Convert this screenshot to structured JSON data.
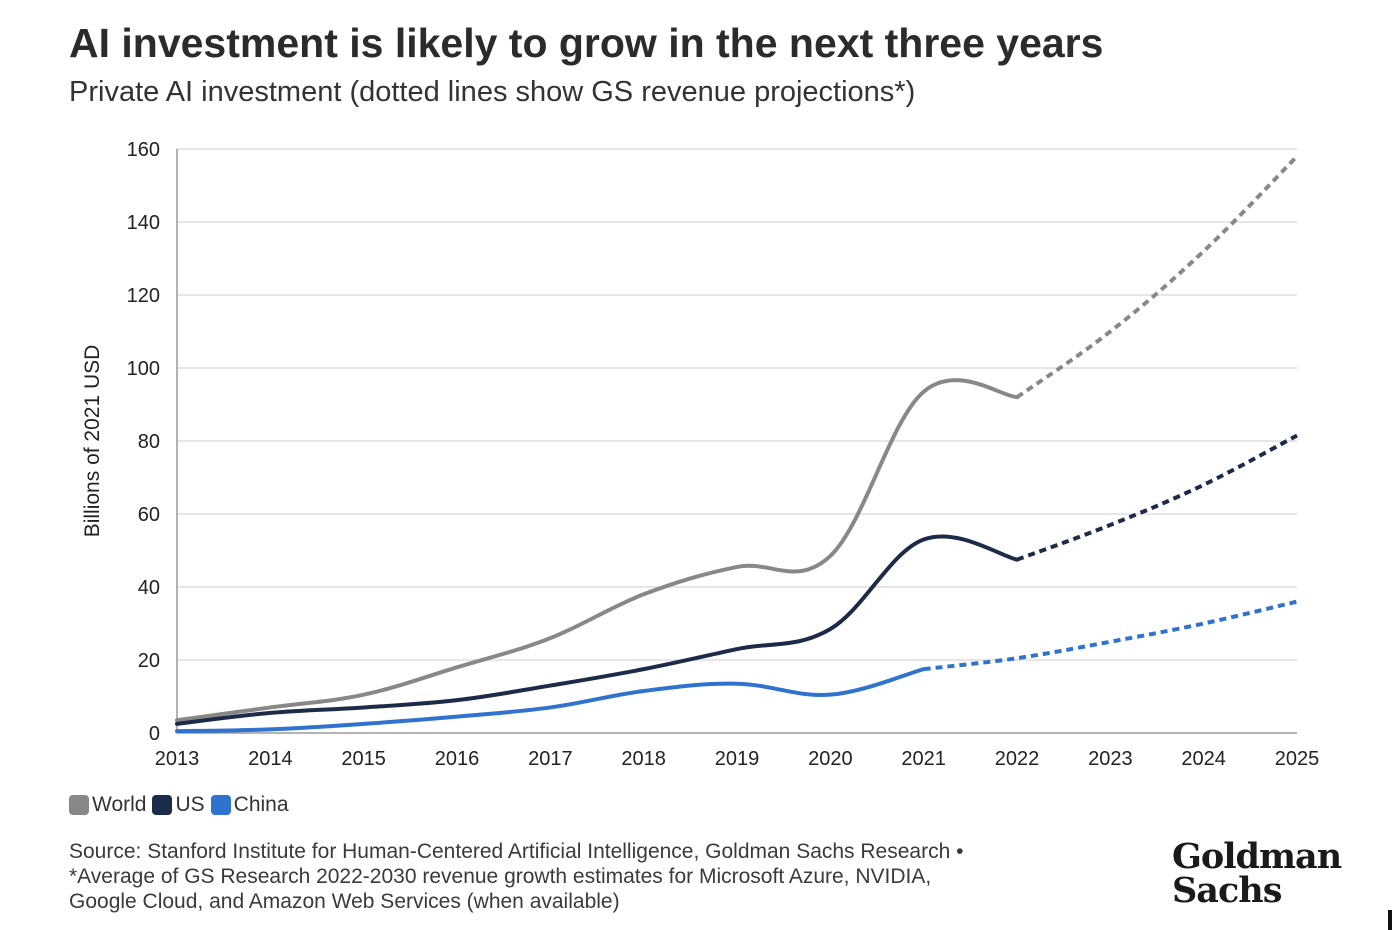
{
  "title": "AI investment is likely to grow in the next three years",
  "subtitle": "Private AI investment (dotted lines show GS revenue projections*)",
  "source": {
    "line1": "Source: Stanford Institute for Human-Centered Artificial Intelligence, Goldman Sachs Research •",
    "line2": "*Average of GS Research 2022-2030 revenue growth estimates for Microsoft Azure, NVIDIA,",
    "line3": "Google Cloud, and Amazon Web Services (when available)"
  },
  "logo": {
    "line1": "Goldman",
    "line2": "Sachs"
  },
  "legend": [
    {
      "name": "World",
      "color": "#888888"
    },
    {
      "name": "US",
      "color": "#1c2b47"
    },
    {
      "name": "China",
      "color": "#2f73cf"
    }
  ],
  "chart_data": {
    "type": "line",
    "title": "AI investment is likely to grow in the next three years",
    "subtitle": "Private AI investment (dotted lines show GS revenue projections*)",
    "xlabel": "",
    "ylabel": "Billions of 2021 USD",
    "x": [
      2013,
      2014,
      2015,
      2016,
      2017,
      2018,
      2019,
      2020,
      2021,
      2022,
      2023,
      2024,
      2025
    ],
    "xlim": [
      2013,
      2025
    ],
    "ylim": [
      0,
      160
    ],
    "yticks": [
      0,
      20,
      40,
      60,
      80,
      100,
      120,
      140,
      160
    ],
    "grid": true,
    "legend_position": "bottom-left",
    "series": [
      {
        "name": "World",
        "color": "#888888",
        "values": [
          3.5,
          7,
          10.5,
          18,
          26,
          38,
          45.5,
          48.5,
          93.5,
          92,
          110,
          132,
          158
        ],
        "projection_from": 2022
      },
      {
        "name": "US",
        "color": "#1c2b47",
        "values": [
          2.5,
          5.5,
          7,
          9,
          13,
          17.5,
          23,
          28.5,
          53,
          47.5,
          57,
          68,
          81.5
        ],
        "projection_from": 2022
      },
      {
        "name": "China",
        "color": "#2f73cf",
        "values": [
          0.5,
          1,
          2.5,
          4.5,
          7,
          11.5,
          13.5,
          10.5,
          17.5,
          20.5,
          25,
          30,
          36
        ],
        "projection_from": 2021
      }
    ]
  }
}
